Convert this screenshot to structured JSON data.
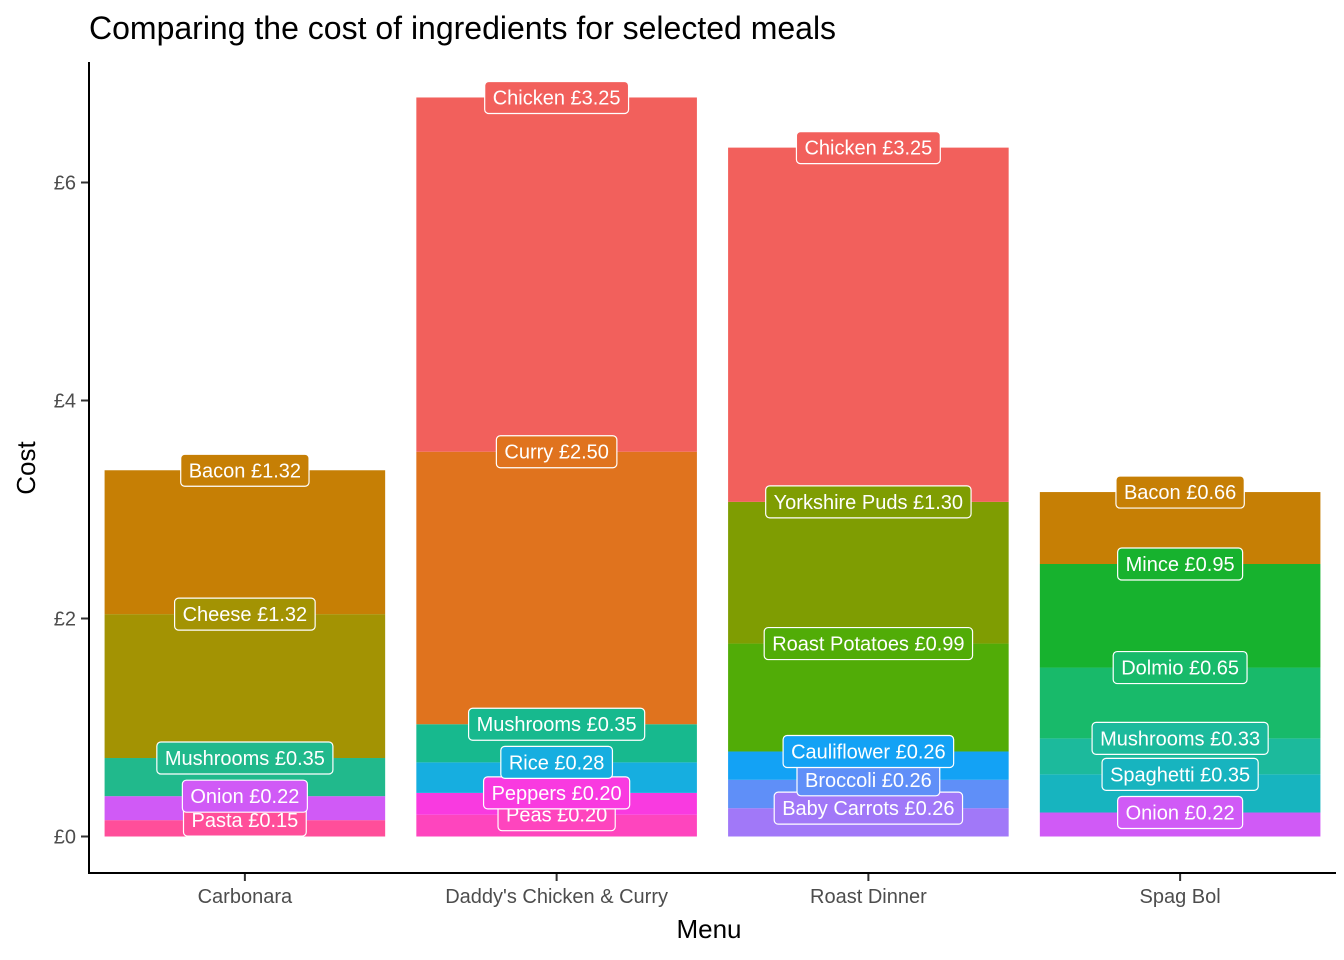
{
  "chart_data": {
    "type": "bar",
    "stacked": true,
    "title": "Comparing the cost of ingredients for selected meals",
    "xlabel": "Menu",
    "ylabel": "Cost",
    "categories": [
      "Carbonara",
      "Daddy's Chicken & Curry",
      "Roast Dinner",
      "Spag Bol"
    ],
    "ylim": [
      0,
      7.1
    ],
    "yticks": [
      0,
      2,
      4,
      6
    ],
    "ytick_labels": [
      "£0",
      "£2",
      "£4",
      "£6"
    ],
    "grid": false,
    "legend": "none",
    "stacks": [
      {
        "category": "Carbonara",
        "segments": [
          {
            "name": "Pasta",
            "value": 0.15,
            "label": "Pasta £0.15",
            "color": "#FF4E9A"
          },
          {
            "name": "Onion",
            "value": 0.22,
            "label": "Onion £0.22",
            "color": "#D05AF6"
          },
          {
            "name": "Mushrooms",
            "value": 0.35,
            "label": "Mushrooms £0.35",
            "color": "#21B98C"
          },
          {
            "name": "Cheese",
            "value": 1.32,
            "label": "Cheese £1.32",
            "color": "#A39303"
          },
          {
            "name": "Bacon",
            "value": 1.32,
            "label": "Bacon £1.32",
            "color": "#C67F05"
          }
        ]
      },
      {
        "category": "Daddy's Chicken & Curry",
        "segments": [
          {
            "name": "Peas",
            "value": 0.2,
            "label": "Peas £0.20",
            "color": "#FE45BE"
          },
          {
            "name": "Peppers",
            "value": 0.2,
            "label": "Peppers £0.20",
            "color": "#F93AE0"
          },
          {
            "name": "Rice",
            "value": 0.28,
            "label": "Rice £0.28",
            "color": "#16AEE0"
          },
          {
            "name": "Mushrooms",
            "value": 0.35,
            "label": "Mushrooms £0.35",
            "color": "#17B98E"
          },
          {
            "name": "Curry",
            "value": 2.5,
            "label": "Curry £2.50",
            "color": "#E0731E"
          },
          {
            "name": "Chicken",
            "value": 3.25,
            "label": "Chicken £3.25",
            "color": "#F2605C"
          }
        ]
      },
      {
        "category": "Roast Dinner",
        "segments": [
          {
            "name": "Baby Carrots",
            "value": 0.26,
            "label": "Baby Carrots £0.26",
            "color": "#A178F8"
          },
          {
            "name": "Broccoli",
            "value": 0.26,
            "label": "Broccoli £0.26",
            "color": "#5F8FF8"
          },
          {
            "name": "Cauliflower",
            "value": 0.26,
            "label": "Cauliflower £0.26",
            "color": "#13A2F5"
          },
          {
            "name": "Roast Potatoes",
            "value": 0.99,
            "label": "Roast Potatoes £0.99",
            "color": "#51AC07"
          },
          {
            "name": "Yorkshire Puds",
            "value": 1.3,
            "label": "Yorkshire Puds £1.30",
            "color": "#7F9D02"
          },
          {
            "name": "Chicken",
            "value": 3.25,
            "label": "Chicken £3.25",
            "color": "#F2605C"
          }
        ]
      },
      {
        "category": "Spag Bol",
        "segments": [
          {
            "name": "Onion",
            "value": 0.22,
            "label": "Onion £0.22",
            "color": "#D05AF6"
          },
          {
            "name": "Spaghetti",
            "value": 0.35,
            "label": "Spaghetti £0.35",
            "color": "#17B4BF"
          },
          {
            "name": "Mushrooms",
            "value": 0.33,
            "label": "Mushrooms £0.33",
            "color": "#1CBA9C"
          },
          {
            "name": "Dolmio",
            "value": 0.65,
            "label": "Dolmio £0.65",
            "color": "#18BA6A"
          },
          {
            "name": "Mince",
            "value": 0.95,
            "label": "Mince £0.95",
            "color": "#17B22E"
          },
          {
            "name": "Bacon",
            "value": 0.66,
            "label": "Bacon £0.66",
            "color": "#C67F05"
          }
        ]
      }
    ]
  }
}
